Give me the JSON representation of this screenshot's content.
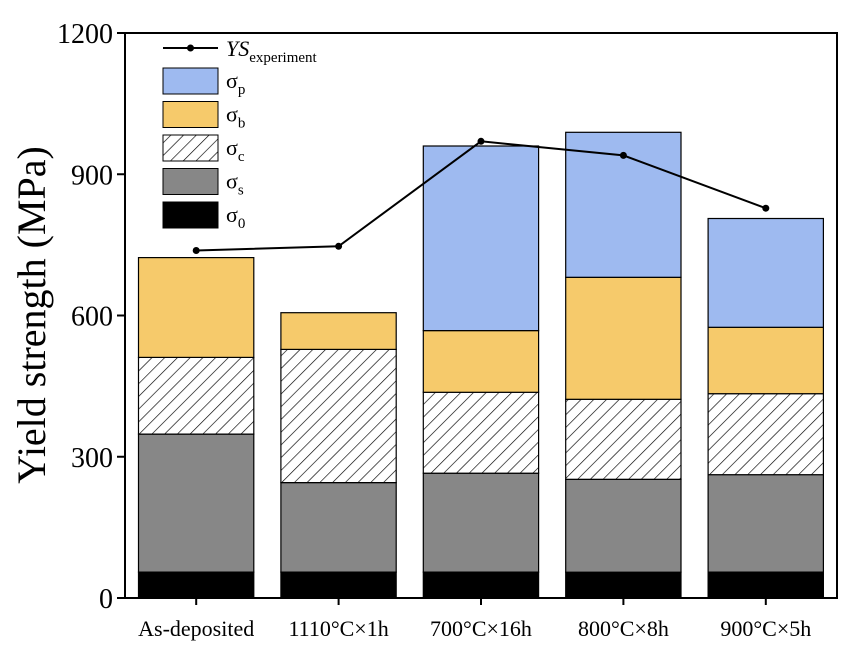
{
  "chart_data": {
    "type": "bar",
    "stacked": true,
    "title": "",
    "xlabel": "",
    "ylabel": "Yield strength (MPa)",
    "ylim": [
      0,
      1200
    ],
    "yticks": [
      0,
      300,
      600,
      900,
      1200
    ],
    "categories": [
      "As-deposited",
      "1110°C×1h",
      "700°C×16h",
      "800°C×8h",
      "900°C×5h"
    ],
    "series": [
      {
        "name": "σ0",
        "symbol": "σ",
        "sub": "0",
        "color": "#000000",
        "pattern": "solid",
        "values": [
          55,
          55,
          55,
          55,
          55
        ]
      },
      {
        "name": "σs",
        "symbol": "σ",
        "sub": "s",
        "color": "#878787",
        "pattern": "solid",
        "values": [
          293,
          190,
          210,
          197,
          207
        ]
      },
      {
        "name": "σc",
        "symbol": "σ",
        "sub": "c",
        "color": "#ffffff",
        "pattern": "hatch",
        "values": [
          163,
          283,
          172,
          170,
          172
        ]
      },
      {
        "name": "σb",
        "symbol": "σ",
        "sub": "b",
        "color": "#f6ca6b",
        "pattern": "solid",
        "values": [
          212,
          78,
          131,
          259,
          141
        ]
      },
      {
        "name": "σp",
        "symbol": "σ",
        "sub": "p",
        "color": "#9ebaf0",
        "pattern": "solid",
        "values": [
          0,
          0,
          392,
          308,
          231
        ]
      }
    ],
    "line": {
      "name": "YSexperiment",
      "main": "YS",
      "sub": "experiment",
      "color": "#000000",
      "values": [
        738,
        747,
        970,
        940,
        828
      ]
    },
    "legend_position": "top-left",
    "grid": false
  }
}
